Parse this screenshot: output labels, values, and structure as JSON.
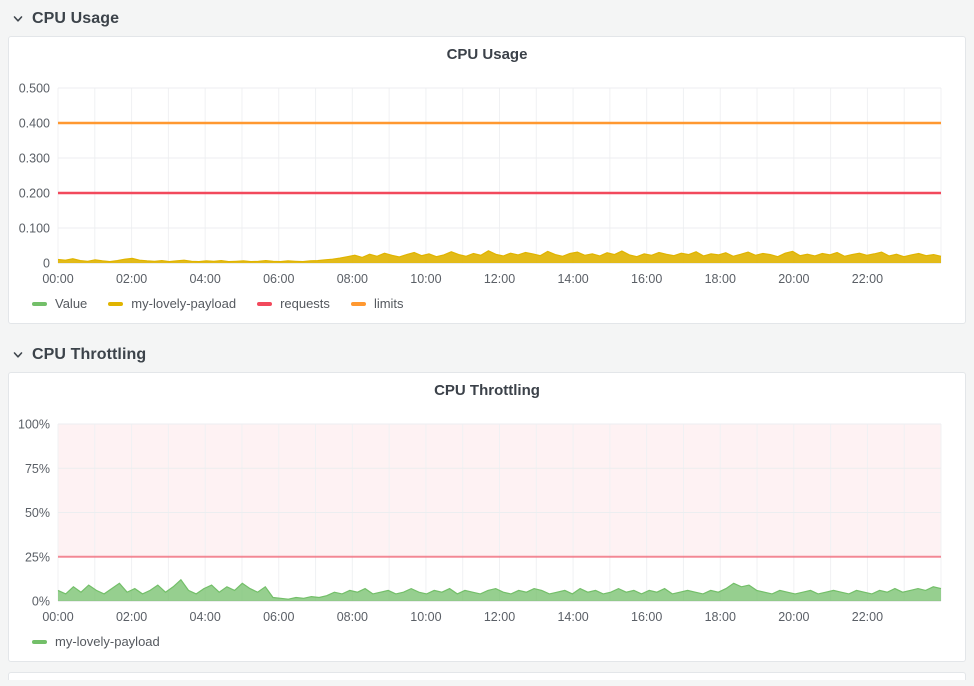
{
  "page": {
    "background": "#f4f5f5",
    "panel_background": "#ffffff"
  },
  "sections": [
    {
      "title": "CPU Usage"
    },
    {
      "title": "CPU Throttling"
    }
  ],
  "chart_data": [
    {
      "type": "area",
      "title": "CPU Usage",
      "xlabel": "",
      "ylabel": "",
      "x_span_hours": 24,
      "x_ticks": [
        "00:00",
        "02:00",
        "04:00",
        "06:00",
        "08:00",
        "10:00",
        "12:00",
        "14:00",
        "16:00",
        "18:00",
        "20:00",
        "22:00"
      ],
      "ylim": [
        0,
        0.5
      ],
      "y_ticks": [
        "0",
        "0.100",
        "0.200",
        "0.300",
        "0.400",
        "0.500"
      ],
      "grid": true,
      "legend_position": "bottom",
      "legend": [
        {
          "name": "Value",
          "color": "#73bf69"
        },
        {
          "name": "my-lovely-payload",
          "color": "#e0b400"
        },
        {
          "name": "requests",
          "color": "#f2495c"
        },
        {
          "name": "limits",
          "color": "#ff9830"
        }
      ],
      "series": [
        {
          "name": "Value",
          "type": "line",
          "color": "#73bf69",
          "visible": false
        },
        {
          "name": "my-lovely-payload",
          "type": "area",
          "color": "#e0b400",
          "fill": "rgba(224,180,0,0.9)",
          "values": [
            0.01,
            0.008,
            0.012,
            0.007,
            0.005,
            0.009,
            0.006,
            0.004,
            0.007,
            0.011,
            0.013,
            0.008,
            0.006,
            0.005,
            0.007,
            0.004,
            0.006,
            0.008,
            0.005,
            0.004,
            0.006,
            0.005,
            0.007,
            0.004,
            0.005,
            0.006,
            0.004,
            0.005,
            0.007,
            0.005,
            0.004,
            0.006,
            0.005,
            0.004,
            0.006,
            0.007,
            0.009,
            0.011,
            0.014,
            0.018,
            0.022,
            0.016,
            0.025,
            0.019,
            0.028,
            0.022,
            0.017,
            0.024,
            0.03,
            0.021,
            0.026,
            0.018,
            0.023,
            0.032,
            0.024,
            0.019,
            0.027,
            0.022,
            0.035,
            0.025,
            0.02,
            0.028,
            0.023,
            0.03,
            0.026,
            0.021,
            0.033,
            0.024,
            0.019,
            0.027,
            0.031,
            0.022,
            0.026,
            0.02,
            0.029,
            0.024,
            0.034,
            0.023,
            0.018,
            0.026,
            0.022,
            0.03,
            0.025,
            0.021,
            0.028,
            0.024,
            0.032,
            0.02,
            0.026,
            0.023,
            0.029,
            0.019,
            0.025,
            0.031,
            0.022,
            0.027,
            0.024,
            0.018,
            0.028,
            0.033,
            0.021,
            0.025,
            0.02,
            0.027,
            0.023,
            0.03,
            0.019,
            0.024,
            0.028,
            0.022,
            0.026,
            0.031,
            0.02,
            0.025,
            0.018,
            0.023,
            0.027,
            0.021,
            0.024,
            0.019
          ]
        },
        {
          "name": "requests",
          "type": "line",
          "color": "#f2495c",
          "constant": 0.2
        },
        {
          "name": "limits",
          "type": "line",
          "color": "#ff9830",
          "constant": 0.4
        }
      ]
    },
    {
      "type": "area",
      "title": "CPU Throttling",
      "xlabel": "",
      "ylabel": "",
      "x_span_hours": 24,
      "x_ticks": [
        "00:00",
        "02:00",
        "04:00",
        "06:00",
        "08:00",
        "10:00",
        "12:00",
        "14:00",
        "16:00",
        "18:00",
        "20:00",
        "22:00"
      ],
      "ylim": [
        0,
        100
      ],
      "y_ticks": [
        "0%",
        "25%",
        "50%",
        "75%",
        "100%"
      ],
      "grid": true,
      "legend_position": "bottom",
      "threshold": {
        "value": 25,
        "line_color": "rgba(242,73,92,0.62)",
        "region_fill": "rgba(242,73,92,0.07)",
        "region_to": 100
      },
      "legend": [
        {
          "name": "my-lovely-payload",
          "color": "#73bf69"
        }
      ],
      "series": [
        {
          "name": "my-lovely-payload",
          "type": "area",
          "color": "#73bf69",
          "fill": "rgba(115,191,105,0.75)",
          "values": [
            6,
            4,
            8,
            5,
            9,
            6,
            4,
            7,
            10,
            5,
            7,
            4,
            6,
            9,
            5,
            8,
            12,
            6,
            4,
            7,
            9,
            5,
            8,
            6,
            10,
            7,
            5,
            8,
            2,
            1.5,
            1,
            2,
            1.5,
            2.5,
            2,
            3,
            5,
            4,
            6,
            5,
            7,
            4,
            5,
            6,
            4,
            5,
            7,
            5,
            4,
            6,
            5,
            7,
            4,
            6,
            5,
            4,
            6,
            7,
            5,
            4,
            6,
            5,
            7,
            6,
            4,
            5,
            6,
            4,
            7,
            5,
            6,
            4,
            5,
            7,
            5,
            6,
            4,
            6,
            5,
            7,
            4,
            5,
            6,
            5,
            4,
            6,
            5,
            7,
            10,
            8,
            9,
            6,
            5,
            4,
            6,
            5,
            4,
            5,
            6,
            4,
            5,
            6,
            5,
            4,
            6,
            5,
            4,
            6,
            5,
            7,
            5,
            6,
            7,
            6,
            8,
            7
          ]
        }
      ]
    }
  ]
}
